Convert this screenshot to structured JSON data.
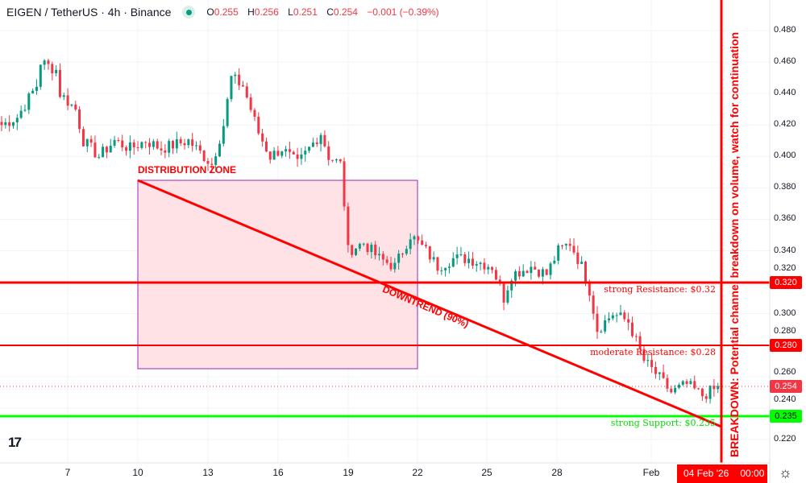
{
  "header": {
    "symbol": "EIGEN / TetherUS · 4h · Binance",
    "o_label": "O",
    "o": "0.255",
    "h_label": "H",
    "h": "0.256",
    "l_label": "L",
    "l": "0.251",
    "c_label": "C",
    "c": "0.254",
    "change": "−0.001 (−0.39%)",
    "market_status": "open"
  },
  "price_axis": [
    "0.480",
    "0.460",
    "0.440",
    "0.420",
    "0.400",
    "0.380",
    "0.360",
    "0.340",
    "0.320",
    "0.300",
    "0.280",
    "0.260",
    "0.240",
    "0.220"
  ],
  "time_axis": [
    "7",
    "10",
    "13",
    "16",
    "19",
    "22",
    "25",
    "28",
    "Feb"
  ],
  "badges": {
    "r1": "0.320",
    "r2": "0.280",
    "last": "0.254",
    "s1": "0.235"
  },
  "annotations": {
    "zone": "DISTRIBUTION ZONE",
    "trend": "DOWNTREND (90%)",
    "r1": "strong Resistance: $0.32",
    "r2": "moderate Resistance: $0.28",
    "s1": "strong Support: $0.235",
    "breakdown": "BREAKDOWN: Potential channel breakdown on volume, watch for continuation"
  },
  "cursor_time": "04 Feb '26",
  "cursor_clock": "00:00",
  "colors": {
    "up": "#089981",
    "down": "#f23645",
    "line": "#ff0000",
    "support": "#00ff00"
  },
  "chart_data": {
    "type": "candlestick",
    "ylim": [
      0.21,
      0.49
    ],
    "keypoints": [
      [
        0,
        0.42
      ],
      [
        4,
        0.425
      ],
      [
        9,
        0.445
      ],
      [
        10,
        0.46
      ],
      [
        14,
        0.455
      ],
      [
        15,
        0.44
      ],
      [
        19,
        0.43
      ],
      [
        21,
        0.41
      ],
      [
        25,
        0.4
      ],
      [
        29,
        0.41
      ],
      [
        33,
        0.405
      ],
      [
        37,
        0.41
      ],
      [
        41,
        0.405
      ],
      [
        48,
        0.41
      ],
      [
        54,
        0.395
      ],
      [
        57,
        0.42
      ],
      [
        59,
        0.45
      ],
      [
        62,
        0.445
      ],
      [
        64,
        0.43
      ],
      [
        66,
        0.415
      ],
      [
        69,
        0.4
      ],
      [
        72,
        0.405
      ],
      [
        76,
        0.395
      ],
      [
        79,
        0.405
      ],
      [
        82,
        0.415
      ],
      [
        84,
        0.4
      ],
      [
        87,
        0.395
      ],
      [
        88,
        0.37
      ],
      [
        89,
        0.34
      ],
      [
        93,
        0.345
      ],
      [
        97,
        0.335
      ],
      [
        101,
        0.33
      ],
      [
        105,
        0.35
      ],
      [
        109,
        0.34
      ],
      [
        112,
        0.33
      ],
      [
        116,
        0.335
      ],
      [
        120,
        0.335
      ],
      [
        126,
        0.33
      ],
      [
        129,
        0.31
      ],
      [
        131,
        0.325
      ],
      [
        136,
        0.33
      ],
      [
        140,
        0.325
      ],
      [
        143,
        0.34
      ],
      [
        146,
        0.345
      ],
      [
        149,
        0.33
      ],
      [
        151,
        0.315
      ],
      [
        153,
        0.29
      ],
      [
        157,
        0.3
      ],
      [
        161,
        0.295
      ],
      [
        165,
        0.27
      ],
      [
        168,
        0.262
      ],
      [
        172,
        0.25
      ],
      [
        176,
        0.255
      ],
      [
        180,
        0.248
      ],
      [
        185,
        0.254
      ]
    ]
  }
}
